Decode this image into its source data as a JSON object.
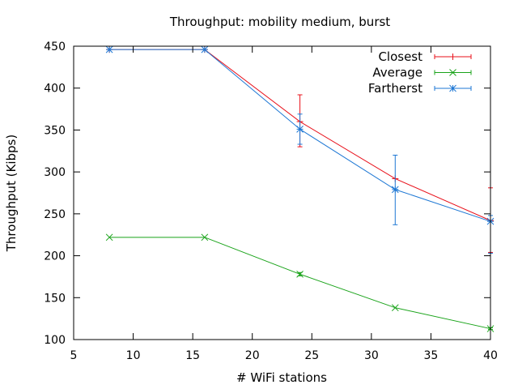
{
  "chart_data": {
    "type": "line",
    "title": "Throughput: mobility medium, burst",
    "xlabel": "# WiFi stations",
    "ylabel": "Throughput (Kibps)",
    "xlim": [
      5,
      40
    ],
    "ylim": [
      100,
      450
    ],
    "xticks": [
      5,
      10,
      15,
      20,
      25,
      30,
      35,
      40
    ],
    "yticks": [
      100,
      150,
      200,
      250,
      300,
      350,
      400,
      450
    ],
    "grid": false,
    "legend_position": "top-right",
    "series": [
      {
        "name": "Closest",
        "color": "#e8101a",
        "marker": "plus",
        "x": [
          8,
          16,
          24,
          32,
          40
        ],
        "y": [
          446,
          446,
          360,
          292,
          242
        ],
        "error_low": [
          446,
          446,
          330,
          292,
          204
        ],
        "error_high": [
          446,
          446,
          392,
          292,
          281
        ]
      },
      {
        "name": "Average",
        "color": "#19a319",
        "marker": "x",
        "x": [
          8,
          16,
          24,
          32,
          40
        ],
        "y": [
          222,
          222,
          178,
          138,
          113
        ],
        "error_low": [
          222,
          222,
          176,
          138,
          112
        ],
        "error_high": [
          222,
          222,
          180,
          138,
          114
        ]
      },
      {
        "name": "Fartherst",
        "color": "#1d77d4",
        "marker": "star",
        "x": [
          8,
          16,
          24,
          32,
          40
        ],
        "y": [
          446,
          446,
          351,
          279,
          241
        ],
        "error_low": [
          446,
          446,
          333,
          237,
          203
        ],
        "error_high": [
          446,
          446,
          369,
          320,
          248
        ]
      }
    ]
  }
}
